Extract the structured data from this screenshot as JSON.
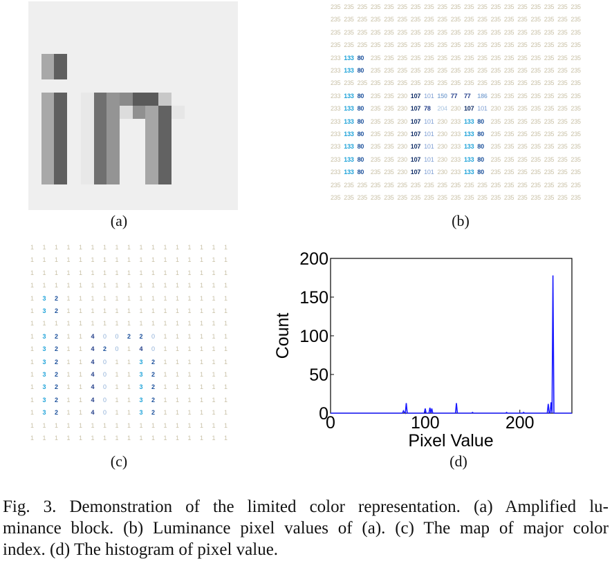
{
  "subfigure_labels": {
    "a": "(a)",
    "b": "(b)",
    "c": "(c)",
    "d": "(d)"
  },
  "panel_b_rows": [
    [
      "235",
      "235",
      "235",
      "235",
      "235",
      "235",
      "235",
      "235",
      "235",
      "235",
      "235",
      "235",
      "235",
      "235",
      "235",
      "235",
      "235",
      "235",
      "235"
    ],
    [
      "235",
      "235",
      "235",
      "235",
      "235",
      "235",
      "235",
      "235",
      "235",
      "235",
      "235",
      "235",
      "235",
      "235",
      "235",
      "235",
      "235",
      "235",
      "235"
    ],
    [
      "235",
      "235",
      "235",
      "235",
      "235",
      "235",
      "235",
      "235",
      "235",
      "235",
      "235",
      "235",
      "235",
      "235",
      "235",
      "235",
      "235",
      "235",
      "235"
    ],
    [
      "235",
      "235",
      "235",
      "235",
      "235",
      "235",
      "235",
      "235",
      "235",
      "235",
      "235",
      "235",
      "235",
      "235",
      "235",
      "235",
      "235",
      "235",
      "235"
    ],
    [
      "233",
      "133",
      "80",
      "235",
      "235",
      "235",
      "235",
      "235",
      "235",
      "235",
      "235",
      "235",
      "235",
      "235",
      "235",
      "235",
      "235",
      "235",
      "235"
    ],
    [
      "233",
      "133",
      "80",
      "235",
      "235",
      "235",
      "235",
      "235",
      "235",
      "235",
      "235",
      "235",
      "235",
      "235",
      "235",
      "235",
      "235",
      "235",
      "235"
    ],
    [
      "235",
      "235",
      "235",
      "235",
      "235",
      "235",
      "235",
      "235",
      "235",
      "235",
      "235",
      "235",
      "235",
      "235",
      "235",
      "235",
      "235",
      "235",
      "235"
    ],
    [
      "233",
      "133",
      "80",
      "235",
      "235",
      "230",
      "107",
      "101",
      "150",
      "77",
      "77",
      "186",
      "235",
      "235",
      "235",
      "235",
      "235",
      "235",
      "235"
    ],
    [
      "233",
      "133",
      "80",
      "235",
      "235",
      "230",
      "107",
      "78",
      "204",
      "230",
      "107",
      "101",
      "230",
      "235",
      "235",
      "235",
      "235",
      "235",
      "235"
    ],
    [
      "233",
      "133",
      "80",
      "235",
      "235",
      "230",
      "107",
      "101",
      "230",
      "233",
      "133",
      "80",
      "235",
      "235",
      "235",
      "235",
      "235",
      "235",
      "235"
    ],
    [
      "233",
      "133",
      "80",
      "235",
      "235",
      "230",
      "107",
      "101",
      "230",
      "233",
      "133",
      "80",
      "235",
      "235",
      "235",
      "235",
      "235",
      "235",
      "235"
    ],
    [
      "233",
      "133",
      "80",
      "235",
      "235",
      "230",
      "107",
      "101",
      "230",
      "233",
      "133",
      "80",
      "235",
      "235",
      "235",
      "235",
      "235",
      "235",
      "235"
    ],
    [
      "233",
      "133",
      "80",
      "235",
      "235",
      "230",
      "107",
      "101",
      "230",
      "233",
      "133",
      "80",
      "235",
      "235",
      "235",
      "235",
      "235",
      "235",
      "235"
    ],
    [
      "233",
      "133",
      "80",
      "235",
      "235",
      "230",
      "107",
      "101",
      "230",
      "233",
      "133",
      "80",
      "235",
      "235",
      "235",
      "235",
      "235",
      "235",
      "235"
    ],
    [
      "235",
      "235",
      "235",
      "235",
      "235",
      "235",
      "235",
      "235",
      "235",
      "235",
      "235",
      "235",
      "235",
      "235",
      "235",
      "235",
      "235",
      "235",
      "235"
    ],
    [
      "235",
      "235",
      "235",
      "235",
      "235",
      "235",
      "235",
      "235",
      "235",
      "235",
      "235",
      "235",
      "235",
      "235",
      "235",
      "235",
      "235",
      "235",
      "235"
    ]
  ],
  "panel_c_rows": [
    [
      "1",
      "1",
      "1",
      "1",
      "1",
      "1",
      "1",
      "1",
      "1",
      "1",
      "1",
      "1",
      "1",
      "1",
      "1",
      "1",
      "1"
    ],
    [
      "1",
      "1",
      "1",
      "1",
      "1",
      "1",
      "1",
      "1",
      "1",
      "1",
      "1",
      "1",
      "1",
      "1",
      "1",
      "1",
      "1"
    ],
    [
      "1",
      "1",
      "1",
      "1",
      "1",
      "1",
      "1",
      "1",
      "1",
      "1",
      "1",
      "1",
      "1",
      "1",
      "1",
      "1",
      "1"
    ],
    [
      "1",
      "1",
      "1",
      "1",
      "1",
      "1",
      "1",
      "1",
      "1",
      "1",
      "1",
      "1",
      "1",
      "1",
      "1",
      "1",
      "1"
    ],
    [
      "1",
      "3",
      "2",
      "1",
      "1",
      "1",
      "1",
      "1",
      "1",
      "1",
      "1",
      "1",
      "1",
      "1",
      "1",
      "1",
      "1"
    ],
    [
      "1",
      "3",
      "2",
      "1",
      "1",
      "1",
      "1",
      "1",
      "1",
      "1",
      "1",
      "1",
      "1",
      "1",
      "1",
      "1",
      "1"
    ],
    [
      "1",
      "1",
      "1",
      "1",
      "1",
      "1",
      "1",
      "1",
      "1",
      "1",
      "1",
      "1",
      "1",
      "1",
      "1",
      "1",
      "1"
    ],
    [
      "1",
      "3",
      "2",
      "1",
      "1",
      "4",
      "0",
      "0",
      "2",
      "2",
      "0",
      "1",
      "1",
      "1",
      "1",
      "1",
      "1"
    ],
    [
      "1",
      "3",
      "2",
      "1",
      "1",
      "4",
      "2",
      "0",
      "1",
      "4",
      "0",
      "1",
      "1",
      "1",
      "1",
      "1",
      "1"
    ],
    [
      "1",
      "3",
      "2",
      "1",
      "1",
      "4",
      "0",
      "1",
      "1",
      "3",
      "2",
      "1",
      "1",
      "1",
      "1",
      "1",
      "1"
    ],
    [
      "1",
      "3",
      "2",
      "1",
      "1",
      "4",
      "0",
      "1",
      "1",
      "3",
      "2",
      "1",
      "1",
      "1",
      "1",
      "1",
      "1"
    ],
    [
      "1",
      "3",
      "2",
      "1",
      "1",
      "4",
      "0",
      "1",
      "1",
      "3",
      "2",
      "1",
      "1",
      "1",
      "1",
      "1",
      "1"
    ],
    [
      "1",
      "3",
      "2",
      "1",
      "1",
      "4",
      "0",
      "1",
      "1",
      "3",
      "2",
      "1",
      "1",
      "1",
      "1",
      "1",
      "1"
    ],
    [
      "1",
      "3",
      "2",
      "1",
      "1",
      "4",
      "0",
      "1",
      "1",
      "3",
      "2",
      "1",
      "1",
      "1",
      "1",
      "1",
      "1"
    ],
    [
      "1",
      "1",
      "1",
      "1",
      "1",
      "1",
      "1",
      "1",
      "1",
      "1",
      "1",
      "1",
      "1",
      "1",
      "1",
      "1",
      "1"
    ],
    [
      "1",
      "1",
      "1",
      "1",
      "1",
      "1",
      "1",
      "1",
      "1",
      "1",
      "1",
      "1",
      "1",
      "1",
      "1",
      "1",
      "1"
    ]
  ],
  "chart_data": {
    "type": "line",
    "title": "",
    "xlabel": "Pixel Value",
    "ylabel": "Count",
    "xlim": [
      0,
      255
    ],
    "ylim": [
      0,
      200
    ],
    "xticks": [
      "0",
      "100",
      "200"
    ],
    "yticks": [
      "0",
      "50",
      "100",
      "150",
      "200"
    ],
    "grid": false,
    "line_color": "#1a1aff",
    "series": [
      {
        "x": [
          0,
          76,
          77,
          78,
          79,
          80,
          81,
          99,
          100,
          101,
          102,
          104,
          105,
          106,
          107,
          108,
          132,
          133,
          134,
          135,
          148,
          149,
          150,
          151,
          152,
          185,
          186,
          187,
          202,
          203,
          204,
          205,
          206,
          228,
          229,
          230,
          231,
          232,
          233,
          234,
          235,
          236,
          237,
          255
        ],
        "y": [
          0,
          0,
          3,
          1,
          0,
          13,
          0,
          0,
          6,
          0,
          0,
          0,
          7,
          0,
          6,
          0,
          0,
          13,
          0,
          0,
          0,
          0,
          1,
          0,
          0,
          0,
          1,
          0,
          0,
          0,
          1,
          0,
          0,
          0,
          0,
          12,
          0,
          0,
          14,
          0,
          178,
          0,
          0,
          0
        ]
      }
    ]
  },
  "caption": {
    "line1": "Fig. 3.    Demonstration of the limited color representation. (a) Amplified lu-",
    "line2": "minance block. (b) Luminance pixel values of (a). (c) The map of major color",
    "line3": "index. (d) The histogram of pixel value."
  }
}
